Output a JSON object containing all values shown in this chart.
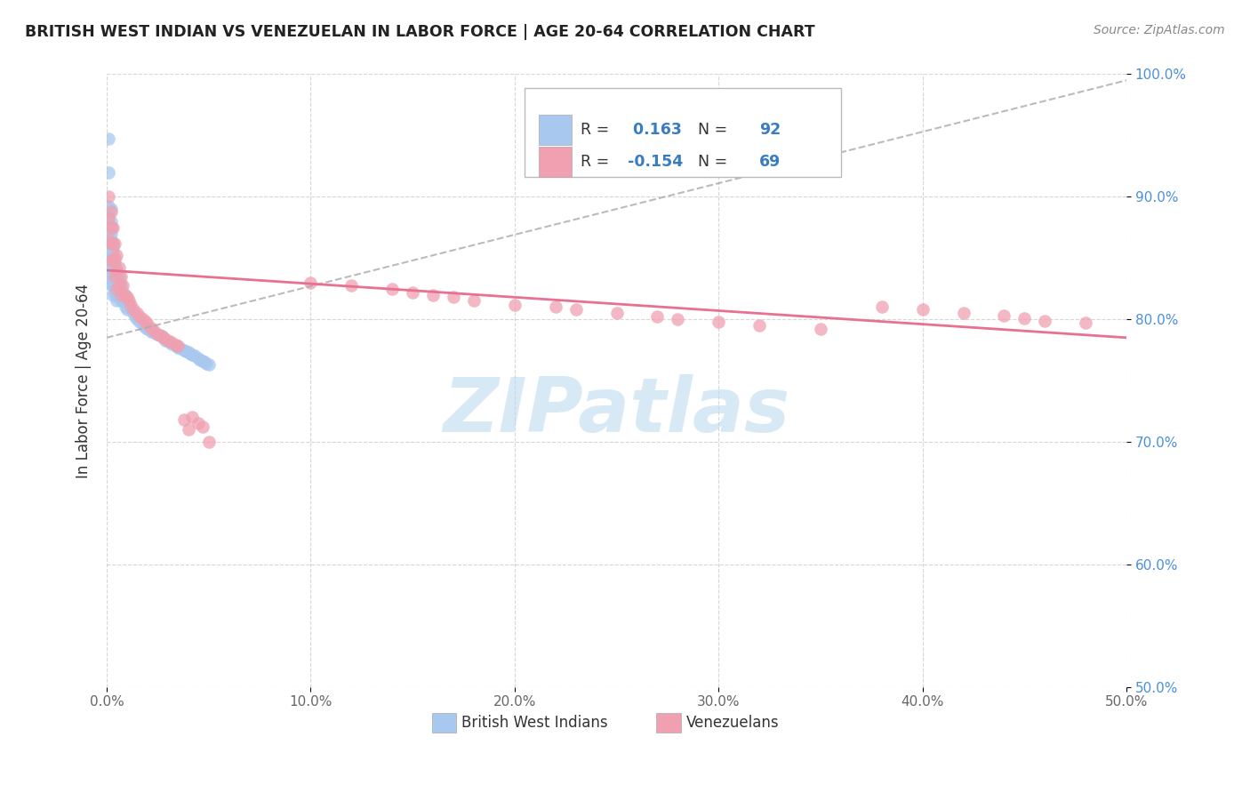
{
  "title": "BRITISH WEST INDIAN VS VENEZUELAN IN LABOR FORCE | AGE 20-64 CORRELATION CHART",
  "source": "Source: ZipAtlas.com",
  "ylabel": "In Labor Force | Age 20-64",
  "xlim": [
    0.0,
    0.5
  ],
  "ylim": [
    0.5,
    1.0
  ],
  "xticks": [
    0.0,
    0.1,
    0.2,
    0.3,
    0.4,
    0.5
  ],
  "xticklabels": [
    "0.0%",
    "10.0%",
    "20.0%",
    "30.0%",
    "40.0%",
    "50.0%"
  ],
  "yticks": [
    0.5,
    0.6,
    0.7,
    0.8,
    0.9,
    1.0
  ],
  "yticklabels": [
    "50.0%",
    "60.0%",
    "70.0%",
    "80.0%",
    "90.0%",
    "100.0%"
  ],
  "blue_R": 0.163,
  "blue_N": 92,
  "pink_R": -0.154,
  "pink_N": 69,
  "blue_color": "#a8c8f0",
  "pink_color": "#f0a0b0",
  "trend_blue_color": "#8ab0d8",
  "trend_pink_color": "#e87090",
  "watermark": "ZIPatlas",
  "watermark_color": "#b8d8f0",
  "legend_label_blue": "British West Indians",
  "legend_label_pink": "Venezuelans",
  "blue_x": [
    0.001,
    0.001,
    0.001,
    0.001,
    0.001,
    0.001,
    0.001,
    0.001,
    0.001,
    0.001,
    0.002,
    0.002,
    0.002,
    0.002,
    0.002,
    0.002,
    0.002,
    0.002,
    0.002,
    0.002,
    0.002,
    0.002,
    0.003,
    0.003,
    0.003,
    0.003,
    0.003,
    0.003,
    0.003,
    0.003,
    0.003,
    0.003,
    0.003,
    0.004,
    0.004,
    0.004,
    0.004,
    0.004,
    0.004,
    0.004,
    0.005,
    0.005,
    0.005,
    0.005,
    0.005,
    0.005,
    0.006,
    0.006,
    0.006,
    0.006,
    0.007,
    0.007,
    0.007,
    0.008,
    0.008,
    0.009,
    0.009,
    0.01,
    0.01,
    0.011,
    0.012,
    0.013,
    0.014,
    0.015,
    0.016,
    0.018,
    0.019,
    0.02,
    0.022,
    0.023,
    0.025,
    0.026,
    0.027,
    0.028,
    0.029,
    0.03,
    0.032,
    0.034,
    0.035,
    0.036,
    0.038,
    0.039,
    0.04,
    0.041,
    0.042,
    0.043,
    0.045,
    0.046,
    0.047,
    0.048,
    0.049,
    0.05
  ],
  "blue_y": [
    0.947,
    0.92,
    0.892,
    0.885,
    0.877,
    0.87,
    0.865,
    0.858,
    0.852,
    0.848,
    0.89,
    0.88,
    0.875,
    0.87,
    0.865,
    0.858,
    0.852,
    0.847,
    0.842,
    0.838,
    0.833,
    0.828,
    0.862,
    0.858,
    0.855,
    0.852,
    0.848,
    0.845,
    0.842,
    0.838,
    0.832,
    0.828,
    0.82,
    0.848,
    0.845,
    0.842,
    0.838,
    0.832,
    0.828,
    0.822,
    0.84,
    0.835,
    0.83,
    0.825,
    0.82,
    0.815,
    0.835,
    0.83,
    0.825,
    0.818,
    0.828,
    0.822,
    0.815,
    0.822,
    0.815,
    0.818,
    0.81,
    0.815,
    0.808,
    0.812,
    0.808,
    0.805,
    0.802,
    0.8,
    0.798,
    0.795,
    0.793,
    0.792,
    0.79,
    0.789,
    0.788,
    0.787,
    0.786,
    0.785,
    0.783,
    0.782,
    0.78,
    0.778,
    0.777,
    0.776,
    0.775,
    0.774,
    0.773,
    0.772,
    0.771,
    0.77,
    0.768,
    0.767,
    0.766,
    0.765,
    0.764,
    0.763
  ],
  "pink_x": [
    0.001,
    0.001,
    0.001,
    0.002,
    0.002,
    0.002,
    0.002,
    0.003,
    0.003,
    0.003,
    0.004,
    0.004,
    0.004,
    0.005,
    0.005,
    0.005,
    0.006,
    0.006,
    0.007,
    0.007,
    0.008,
    0.009,
    0.01,
    0.011,
    0.012,
    0.013,
    0.015,
    0.016,
    0.018,
    0.019,
    0.02,
    0.022,
    0.023,
    0.025,
    0.027,
    0.028,
    0.03,
    0.032,
    0.034,
    0.035,
    0.038,
    0.04,
    0.042,
    0.045,
    0.047,
    0.05,
    0.1,
    0.12,
    0.14,
    0.15,
    0.16,
    0.17,
    0.18,
    0.2,
    0.22,
    0.23,
    0.25,
    0.27,
    0.28,
    0.3,
    0.32,
    0.35,
    0.38,
    0.4,
    0.42,
    0.44,
    0.45,
    0.46,
    0.48
  ],
  "pink_y": [
    0.9,
    0.882,
    0.865,
    0.888,
    0.875,
    0.862,
    0.848,
    0.875,
    0.862,
    0.848,
    0.862,
    0.85,
    0.835,
    0.852,
    0.84,
    0.825,
    0.842,
    0.828,
    0.835,
    0.82,
    0.828,
    0.82,
    0.818,
    0.815,
    0.812,
    0.808,
    0.805,
    0.802,
    0.8,
    0.798,
    0.796,
    0.793,
    0.791,
    0.788,
    0.786,
    0.785,
    0.783,
    0.781,
    0.779,
    0.778,
    0.718,
    0.71,
    0.72,
    0.715,
    0.712,
    0.7,
    0.83,
    0.828,
    0.825,
    0.822,
    0.82,
    0.818,
    0.815,
    0.812,
    0.81,
    0.808,
    0.805,
    0.802,
    0.8,
    0.798,
    0.795,
    0.792,
    0.81,
    0.808,
    0.805,
    0.803,
    0.801,
    0.799,
    0.797
  ]
}
